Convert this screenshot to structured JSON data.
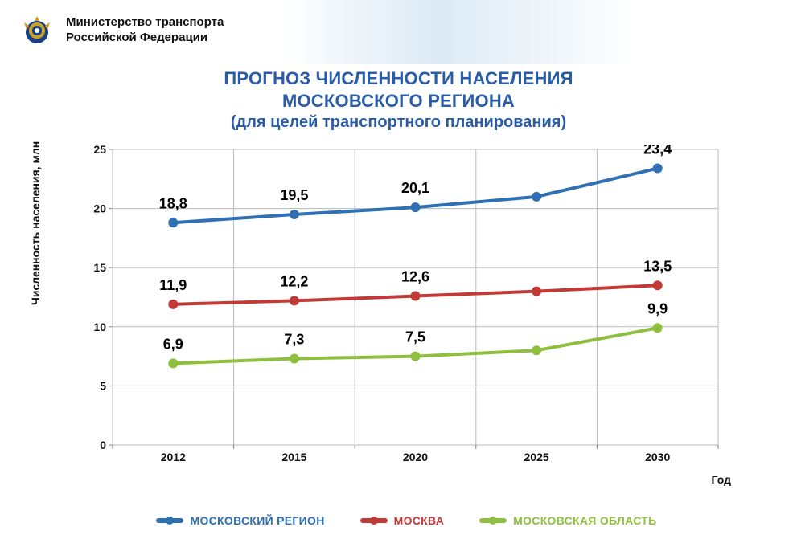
{
  "header": {
    "ministry_line1": "Министерство транспорта",
    "ministry_line2": "Российской Федерации",
    "emblem_colors": {
      "outer": "#c9a227",
      "inner": "#1b3f85",
      "accent": "#ffffff"
    }
  },
  "title": {
    "line1": "ПРОГНОЗ ЧИСЛЕННОСТИ НАСЕЛЕНИЯ",
    "line2": "МОСКОВСКОГО РЕГИОНА",
    "subtitle": "(для целей транспортного планирования)",
    "color": "#2a5ca8"
  },
  "chart": {
    "type": "line",
    "x": {
      "categories": [
        "2012",
        "2015",
        "2020",
        "2025",
        "2030"
      ],
      "label": "Год"
    },
    "y": {
      "label": "Численность населения, млн",
      "min": 0,
      "max": 25,
      "step": 5
    },
    "series": [
      {
        "id": "region",
        "name": "МОСКОВСКИЙ РЕГИОН",
        "color": "#2f6fb3",
        "values": [
          18.8,
          19.5,
          20.1,
          21.0,
          23.4
        ],
        "labels": [
          "18,8",
          "19,5",
          "20,1",
          "",
          "23,4"
        ]
      },
      {
        "id": "moscow",
        "name": "МОСКВА",
        "color": "#c23a35",
        "values": [
          11.9,
          12.2,
          12.6,
          13.0,
          13.5
        ],
        "labels": [
          "11,9",
          "12,2",
          "12,6",
          "",
          "13,5"
        ]
      },
      {
        "id": "oblast",
        "name": "МОСКОВСКАЯ ОБЛАСТЬ",
        "color": "#8fbf3f",
        "values": [
          6.9,
          7.3,
          7.5,
          8.0,
          9.9
        ],
        "labels": [
          "6,9",
          "7,3",
          "7,5",
          "",
          "9,9"
        ]
      }
    ],
    "style": {
      "line_width": 4,
      "marker_radius": 6,
      "grid_color": "#b9b9b9",
      "axis_color": "#808080",
      "border_color": "#b9b9b9",
      "background": "#ffffff",
      "tick_fontsize": 14,
      "label_fontsize": 14,
      "data_fontsize": 18,
      "data_fontweight": 900,
      "label_y_offset": -18
    }
  },
  "legend": {
    "items": [
      {
        "ref": "region"
      },
      {
        "ref": "moscow"
      },
      {
        "ref": "oblast"
      }
    ]
  }
}
